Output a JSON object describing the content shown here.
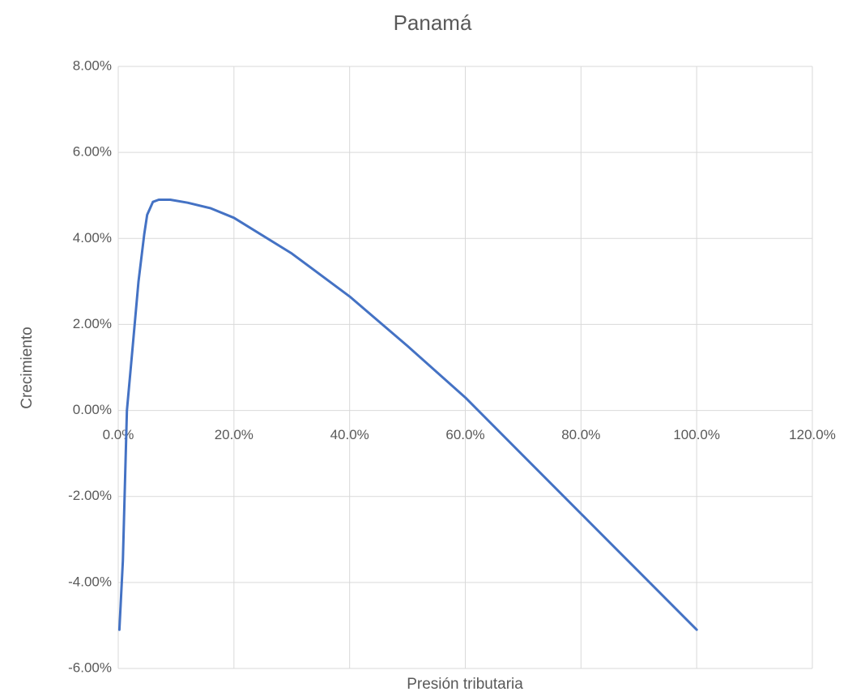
{
  "chart_data": {
    "type": "line",
    "title": "Panamá",
    "xlabel": "Presión tributaria",
    "ylabel": "Crecimiento",
    "x": [
      0.2,
      0.8,
      1.5,
      2.5,
      3.5,
      4.5,
      5.0,
      6.0,
      7.0,
      9.0,
      12.0,
      16.0,
      20.0,
      30.0,
      40.0,
      50.0,
      60.0,
      70.0,
      80.0,
      90.0,
      100.0
    ],
    "values": [
      -5.1,
      -3.5,
      0.0,
      1.5,
      3.0,
      4.1,
      4.55,
      4.85,
      4.9,
      4.9,
      4.83,
      4.7,
      4.48,
      3.65,
      2.65,
      1.5,
      0.3,
      -1.05,
      -2.4,
      -3.75,
      -5.1
    ],
    "color": "#4472c4",
    "xlim": [
      0,
      120
    ],
    "xticks": [
      {
        "value": 0,
        "label": "0.0%"
      },
      {
        "value": 20,
        "label": "20.0%"
      },
      {
        "value": 40,
        "label": "40.0%"
      },
      {
        "value": 60,
        "label": "60.0%"
      },
      {
        "value": 80,
        "label": "80.0%"
      },
      {
        "value": 100,
        "label": "100.0%"
      },
      {
        "value": 120,
        "label": "120.0%"
      }
    ],
    "ylim": [
      -6,
      8
    ],
    "yticks": [
      {
        "value": -6,
        "label": "-6.00%"
      },
      {
        "value": -4,
        "label": "-4.00%"
      },
      {
        "value": -2,
        "label": "-2.00%"
      },
      {
        "value": 0,
        "label": "0.00%"
      },
      {
        "value": 2,
        "label": "2.00%"
      },
      {
        "value": 4,
        "label": "4.00%"
      },
      {
        "value": 6,
        "label": "6.00%"
      },
      {
        "value": 8,
        "label": "8.00%"
      }
    ],
    "grid": true
  }
}
